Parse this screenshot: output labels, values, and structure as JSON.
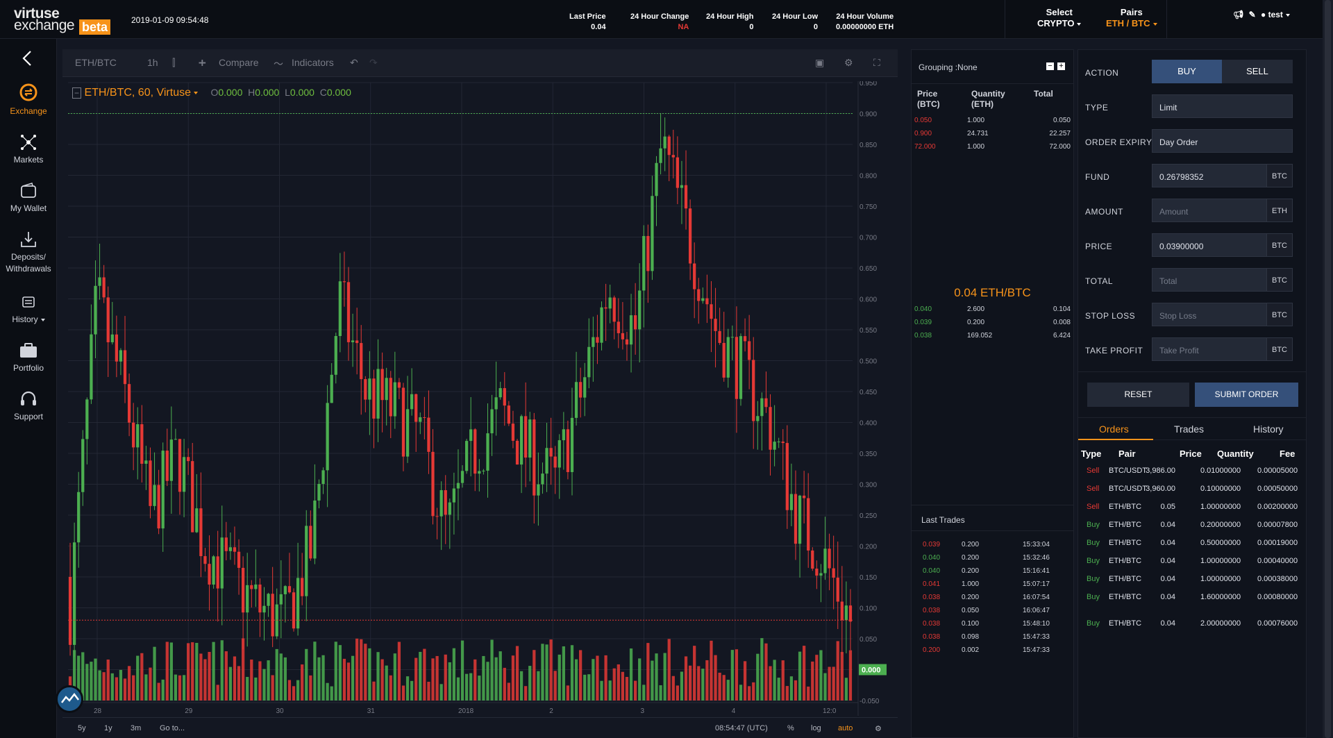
{
  "header": {
    "logo_top": "virtuse",
    "logo_bottom": "exchange",
    "logo_badge": "beta",
    "datetime": "2019-01-09 09:54:48",
    "last_price_label": "Last Price",
    "last_price": "0.04",
    "change_label": "24 Hour Change",
    "change": "NA",
    "high_label": "24 Hour High",
    "high": "0",
    "low_label": "24 Hour Low",
    "low": "0",
    "volume_label": "24 Hour Volume",
    "volume": "0.00000000 ETH",
    "select_label": "Select",
    "select_value": "CRYPTO",
    "pairs_label": "Pairs",
    "pairs_value": "ETH / BTC",
    "user": "test"
  },
  "sidebar": {
    "items": [
      {
        "label": "Exchange",
        "icon": "exchange-icon"
      },
      {
        "label": "Markets",
        "icon": "markets-icon"
      },
      {
        "label": "My Wallet",
        "icon": "wallet-icon"
      },
      {
        "label": "Deposits/",
        "label2": "Withdrawals",
        "icon": "download-icon"
      },
      {
        "label": "History",
        "icon": "history-icon"
      },
      {
        "label": "Portfolio",
        "icon": "briefcase-icon"
      },
      {
        "label": "Support",
        "icon": "headset-icon"
      }
    ]
  },
  "chart": {
    "symbol_toolbar": "ETH/BTC",
    "interval": "1h",
    "compare": "Compare",
    "indicators": "Indicators",
    "legend_symbol": "ETH/BTC, 60, Virtuse",
    "o": "0.000",
    "h": "0.000",
    "l": "0.000",
    "c": "0.000",
    "last_value_label": "0.000",
    "bottom": {
      "r5y": "5y",
      "r1y": "1y",
      "r3m": "3m",
      "goto": "Go to...",
      "time": "08:54:47 (UTC)",
      "pct": "%",
      "log": "log",
      "auto": "auto"
    }
  },
  "chart_data": {
    "type": "candlestick",
    "title": "ETH/BTC, 60, Virtuse",
    "x_ticks": [
      "28",
      "29",
      "30",
      "31",
      "2018",
      "2",
      "3",
      "4",
      "12:0"
    ],
    "y_ticks": [
      "0.950",
      "0.900",
      "0.850",
      "0.800",
      "0.750",
      "0.700",
      "0.650",
      "0.600",
      "0.550",
      "0.500",
      "0.450",
      "0.400",
      "0.350",
      "0.300",
      "0.250",
      "0.200",
      "0.150",
      "0.100",
      "0.050",
      "0.000",
      "-0.050"
    ],
    "ylim": [
      -0.05,
      0.95
    ],
    "price_line": 0.08,
    "last_value": 0.0,
    "grid": true
  },
  "book": {
    "grouping": "Grouping :None",
    "headers": {
      "price": "Price",
      "price_unit": "(BTC)",
      "qty": "Quantity",
      "qty_unit": "(ETH)",
      "total": "Total"
    },
    "asks": [
      {
        "price": "0.050",
        "qty": "1.000",
        "total": "0.050"
      },
      {
        "price": "0.900",
        "qty": "24.731",
        "total": "22.257"
      },
      {
        "price": "72.000",
        "qty": "1.000",
        "total": "72.000"
      }
    ],
    "mid": "0.04 ETH/BTC",
    "bids": [
      {
        "price": "0.040",
        "qty": "2.600",
        "total": "0.104"
      },
      {
        "price": "0.039",
        "qty": "0.200",
        "total": "0.008"
      },
      {
        "price": "0.038",
        "qty": "169.052",
        "total": "6.424"
      }
    ],
    "last_trades_title": "Last Trades",
    "trades": [
      {
        "price": "0.039",
        "qty": "0.200",
        "time": "15:33:04",
        "side": "red"
      },
      {
        "price": "0.040",
        "qty": "0.200",
        "time": "15:32:46",
        "side": "green"
      },
      {
        "price": "0.040",
        "qty": "0.200",
        "time": "15:16:41",
        "side": "green"
      },
      {
        "price": "0.041",
        "qty": "1.000",
        "time": "15:07:17",
        "side": "red"
      },
      {
        "price": "0.038",
        "qty": "0.200",
        "time": "16:07:54",
        "side": "red"
      },
      {
        "price": "0.038",
        "qty": "0.050",
        "time": "16:06:47",
        "side": "red"
      },
      {
        "price": "0.038",
        "qty": "0.100",
        "time": "15:48:10",
        "side": "red"
      },
      {
        "price": "0.038",
        "qty": "0.098",
        "time": "15:47:33",
        "side": "red"
      },
      {
        "price": "0.200",
        "qty": "0.002",
        "time": "15:47:33",
        "side": "red"
      }
    ]
  },
  "form": {
    "action_label": "ACTION",
    "buy": "BUY",
    "sell": "SELL",
    "type_label": "TYPE",
    "type_value": "Limit",
    "expiry_label": "ORDER EXPIRY",
    "expiry_value": "Day Order",
    "fund_label": "FUND",
    "fund_value": "0.26798352",
    "fund_unit": "BTC",
    "amount_label": "AMOUNT",
    "amount_placeholder": "Amount",
    "amount_unit": "ETH",
    "price_label": "PRICE",
    "price_value": "0.03900000",
    "price_unit": "BTC",
    "total_label": "TOTAL",
    "total_placeholder": "Total",
    "total_unit": "BTC",
    "stop_label": "STOP LOSS",
    "stop_placeholder": "Stop Loss",
    "stop_unit": "BTC",
    "tp_label": "TAKE PROFIT",
    "tp_placeholder": "Take Profit",
    "tp_unit": "BTC",
    "reset": "RESET",
    "submit": "SUBMIT ORDER",
    "tabs": {
      "orders": "Orders",
      "trades": "Trades",
      "history": "History"
    },
    "cols": {
      "type": "Type",
      "pair": "Pair",
      "price": "Price",
      "qty": "Quantity",
      "fee": "Fee"
    },
    "orders": [
      {
        "type": "Sell",
        "pair": "BTC/USDT",
        "price": "3,986.00",
        "qty": "0.01000000",
        "fee": "0.00005000"
      },
      {
        "type": "Sell",
        "pair": "BTC/USDT",
        "price": "3,960.00",
        "qty": "0.10000000",
        "fee": "0.00050000"
      },
      {
        "type": "Sell",
        "pair": "ETH/BTC",
        "price": "0.05",
        "qty": "1.00000000",
        "fee": "0.00200000"
      },
      {
        "type": "Buy",
        "pair": "ETH/BTC",
        "price": "0.04",
        "qty": "0.20000000",
        "fee": "0.00007800"
      },
      {
        "type": "Buy",
        "pair": "ETH/BTC",
        "price": "0.04",
        "qty": "0.50000000",
        "fee": "0.00019000"
      },
      {
        "type": "Buy",
        "pair": "ETH/BTC",
        "price": "0.04",
        "qty": "1.00000000",
        "fee": "0.00040000"
      },
      {
        "type": "Buy",
        "pair": "ETH/BTC",
        "price": "0.04",
        "qty": "1.00000000",
        "fee": "0.00038000"
      },
      {
        "type": "Buy",
        "pair": "ETH/BTC",
        "price": "0.04",
        "qty": "1.60000000",
        "fee": "0.00080000"
      },
      {
        "type": "Buy",
        "pair": "ETH/BTC",
        "price": "0.04",
        "qty": "2.00000000",
        "fee": "0.00076000"
      }
    ]
  },
  "colors": {
    "accent": "#f7931a",
    "up": "#4caf50",
    "down": "#e53935",
    "bg": "#131722"
  }
}
